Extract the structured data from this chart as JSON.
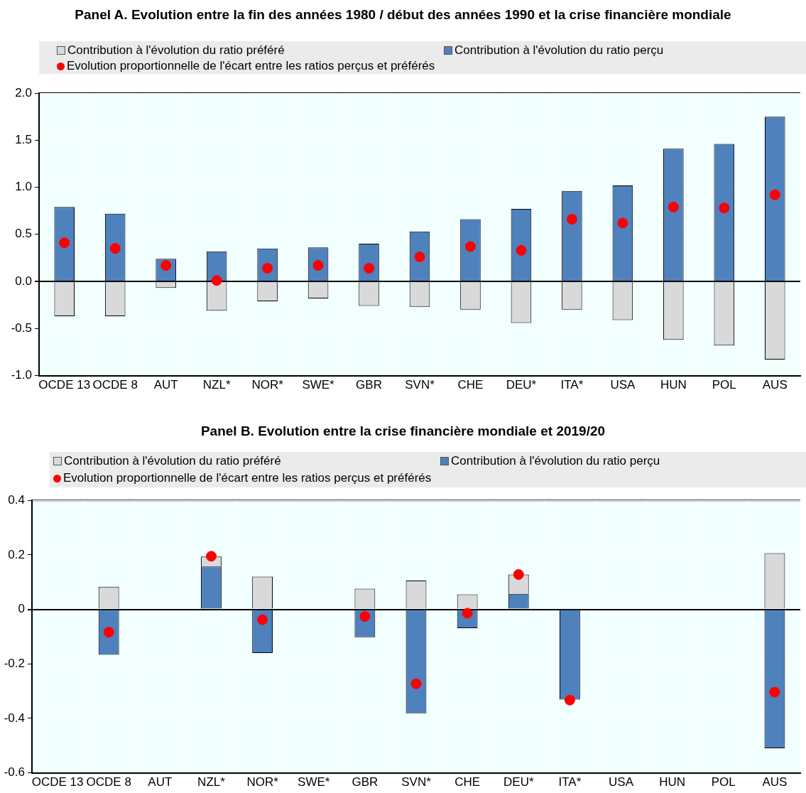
{
  "chart_data": [
    {
      "type": "bar",
      "title": "Panel A. Evolution entre la fin des années 1980 / début des années 1990 et la crise financière mondiale",
      "stacked": true,
      "grid": true,
      "legend": "top",
      "categories": [
        "OCDE 13",
        "OCDE 8",
        "AUT",
        "NZL*",
        "NOR*",
        "SWE*",
        "GBR",
        "SVN*",
        "CHE",
        "DEU*",
        "ITA*",
        "USA",
        "HUN",
        "POL",
        "AUS"
      ],
      "series": [
        {
          "name": "Contribution à l'évolution du ratio perçu",
          "color": "#4f81bd",
          "values": [
            0.79,
            0.72,
            0.24,
            0.32,
            0.35,
            0.36,
            0.4,
            0.53,
            0.66,
            0.77,
            0.96,
            1.02,
            1.41,
            1.46,
            1.75
          ]
        },
        {
          "name": "Contribution à l'évolution du ratio préféré",
          "color": "#d9d9d9",
          "values": [
            -0.37,
            -0.37,
            -0.07,
            -0.31,
            -0.21,
            -0.18,
            -0.26,
            -0.27,
            -0.3,
            -0.44,
            -0.3,
            -0.41,
            -0.62,
            -0.68,
            -0.83
          ]
        },
        {
          "name": "Evolution proportionnelle de l'écart entre les ratios perçus et préférés",
          "type": "scatter",
          "marker": "circle",
          "color": "#ff0000",
          "values": [
            0.41,
            0.35,
            0.17,
            0.01,
            0.14,
            0.17,
            0.14,
            0.26,
            0.37,
            0.33,
            0.66,
            0.62,
            0.79,
            0.78,
            0.92
          ]
        }
      ],
      "ylim": [
        -1,
        2
      ],
      "yticks": [
        {
          "value": -1,
          "label": "-1.0"
        },
        {
          "value": -0.5,
          "label": "-0.5"
        },
        {
          "value": 0,
          "label": "0.0"
        },
        {
          "value": 0.5,
          "label": "0.5"
        },
        {
          "value": 1,
          "label": "1.0"
        },
        {
          "value": 1.5,
          "label": "1.5"
        },
        {
          "value": 2,
          "label": "2.0"
        }
      ]
    },
    {
      "type": "bar",
      "title": "Panel B. Evolution entre la crise financière mondiale et 2019/20",
      "stacked": true,
      "grid": true,
      "legend": "top",
      "categories": [
        "OCDE 13",
        "OCDE 8",
        "AUT",
        "NZL*",
        "NOR*",
        "SWE*",
        "GBR",
        "SVN*",
        "CHE",
        "DEU*",
        "ITA*",
        "USA",
        "HUN",
        "POL",
        "AUS"
      ],
      "series": [
        {
          "name": "Contribution à l'évolution du ratio perçu",
          "color": "#4f81bd",
          "values": [
            null,
            -0.167,
            null,
            0.157,
            -0.16,
            null,
            -0.102,
            -0.381,
            -0.069,
            0.057,
            -0.331,
            null,
            null,
            null,
            -0.51
          ]
        },
        {
          "name": "Contribution à l'évolution du ratio préféré",
          "color": "#d9d9d9",
          "values": [
            null,
            0.083,
            null,
            0.037,
            0.12,
            null,
            0.076,
            0.106,
            0.055,
            0.071,
            null,
            null,
            null,
            null,
            0.206
          ]
        },
        {
          "name": "Evolution proportionnelle de l'écart entre les ratios perçus et préférés",
          "type": "scatter",
          "marker": "circle",
          "color": "#ff0000",
          "values": [
            null,
            -0.084,
            null,
            0.195,
            -0.038,
            null,
            -0.026,
            -0.273,
            -0.014,
            0.128,
            -0.333,
            null,
            null,
            null,
            -0.304
          ]
        }
      ],
      "ylim": [
        -0.6,
        0.4
      ],
      "yticks": [
        -0.6,
        -0.4,
        -0.2,
        0,
        0.2,
        0.4
      ]
    }
  ]
}
